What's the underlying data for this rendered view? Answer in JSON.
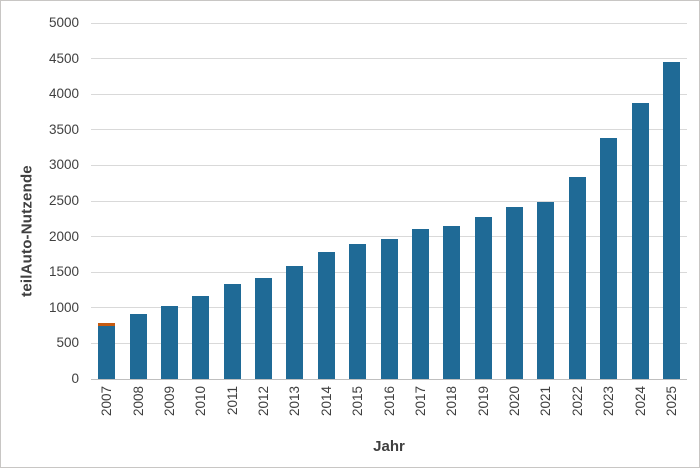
{
  "chart_data": {
    "type": "bar",
    "title": "",
    "xlabel": "Jahr",
    "ylabel": "teilAuto-Nutzende",
    "categories": [
      "2007",
      "2008",
      "2009",
      "2010",
      "2011",
      "2012",
      "2013",
      "2014",
      "2015",
      "2016",
      "2017",
      "2018",
      "2019",
      "2020",
      "2021",
      "2022",
      "2023",
      "2024",
      "2025"
    ],
    "series": [
      {
        "name": "teilAuto-Nutzende",
        "color": "#1f6a96",
        "values": [
          750,
          920,
          1020,
          1170,
          1330,
          1420,
          1590,
          1790,
          1890,
          1960,
          2100,
          2150,
          2270,
          2420,
          2480,
          2840,
          3390,
          3870,
          4450
        ]
      },
      {
        "name": "orange-cap-2007",
        "color": "#c55a11",
        "values": [
          30,
          0,
          0,
          0,
          0,
          0,
          0,
          0,
          0,
          0,
          0,
          0,
          0,
          0,
          0,
          0,
          0,
          0,
          0
        ]
      }
    ],
    "ylim": [
      0,
      5000
    ],
    "ytick_step": 500,
    "grid": "horizontal",
    "legend_position": "none",
    "colors": {
      "gridline": "#d9d9d9",
      "axis_line": "#bfbfbf",
      "tick_label": "#404040",
      "axis_title": "#3f3f3f",
      "frame_border": "#c8c6c4",
      "background": "#ffffff"
    }
  }
}
